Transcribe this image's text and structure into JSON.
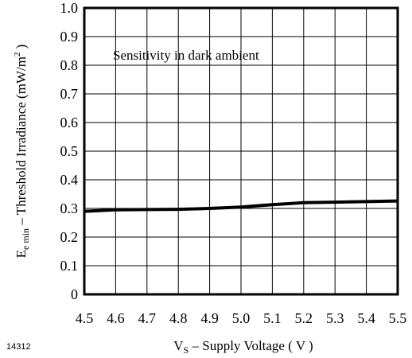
{
  "figure_id": "14312",
  "chart_data": {
    "type": "line",
    "annotation": "Sensitivity in dark ambient",
    "xlabel": {
      "symbol": "V",
      "subscript": "S",
      "text": " – Supply Voltage ( V )"
    },
    "ylabel": {
      "symbol": "E",
      "subscript": "e min",
      "text": "  –  Threshold Irradiance (mW/m",
      "superscript": "2",
      "close": " )"
    },
    "xlim": [
      4.5,
      5.5
    ],
    "ylim": [
      0,
      1.0
    ],
    "x_ticks": [
      "4.5",
      "4.6",
      "4.7",
      "4.8",
      "4.9",
      "5.0",
      "5.1",
      "5.2",
      "5.3",
      "5.4",
      "5.5"
    ],
    "y_ticks": [
      "0",
      "0.1",
      "0.2",
      "0.3",
      "0.4",
      "0.5",
      "0.6",
      "0.7",
      "0.8",
      "0.9",
      "1.0"
    ],
    "grid": true,
    "series": [
      {
        "x": [
          4.5,
          4.6,
          4.7,
          4.8,
          4.9,
          5.0,
          5.1,
          5.2,
          5.3,
          5.4,
          5.5
        ],
        "y": [
          0.29,
          0.295,
          0.296,
          0.297,
          0.3,
          0.305,
          0.313,
          0.32,
          0.322,
          0.324,
          0.326
        ]
      }
    ]
  }
}
